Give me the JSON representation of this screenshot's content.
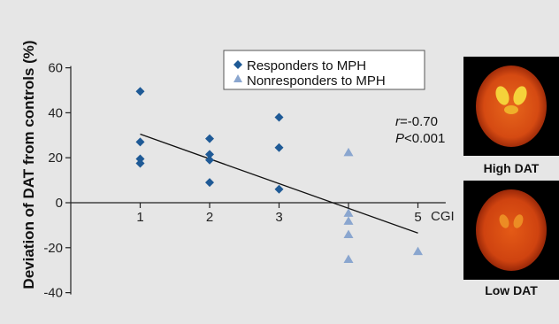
{
  "chart_data": {
    "type": "scatter",
    "ylabel": "Deviation of DAT from controls (%)",
    "xlabel": "CGI",
    "xlim": [
      0,
      5.4
    ],
    "ylim": [
      -40,
      60
    ],
    "x_ticks": [
      1,
      2,
      3,
      4,
      5
    ],
    "y_ticks": [
      60,
      40,
      20,
      0,
      -20,
      -40
    ],
    "x_tick_labels": [
      "1",
      "2",
      "3",
      "",
      "5"
    ],
    "y_tick_labels": [
      "60",
      "40",
      "20",
      "0",
      "-20",
      "-40"
    ],
    "legend_position": "top-center",
    "series": [
      {
        "name": "Responders to MPH",
        "marker": "diamond",
        "color": "#1f5a96",
        "points": [
          {
            "x": 1,
            "y": 49.5
          },
          {
            "x": 1,
            "y": 27
          },
          {
            "x": 1,
            "y": 19.5
          },
          {
            "x": 1,
            "y": 17.5
          },
          {
            "x": 2,
            "y": 28.5
          },
          {
            "x": 2,
            "y": 21.5
          },
          {
            "x": 2,
            "y": 19
          },
          {
            "x": 2,
            "y": 9
          },
          {
            "x": 3,
            "y": 38
          },
          {
            "x": 3,
            "y": 24.5
          },
          {
            "x": 3,
            "y": 6
          }
        ]
      },
      {
        "name": "Nonresponders to MPH",
        "marker": "triangle",
        "color": "#8aa6cf",
        "points": [
          {
            "x": 4,
            "y": 22.5
          },
          {
            "x": 4,
            "y": -4.5
          },
          {
            "x": 4,
            "y": -8
          },
          {
            "x": 4,
            "y": -14
          },
          {
            "x": 4,
            "y": -25
          },
          {
            "x": 5,
            "y": -21.5
          }
        ]
      }
    ],
    "trendline": {
      "from": {
        "x": 1,
        "y": 30.5
      },
      "to": {
        "x": 5,
        "y": -13.5
      },
      "color": "#111111"
    },
    "annotation": {
      "r_label": "r",
      "r_value": "=-0.70",
      "p_label": "P",
      "p_value": "<0.001"
    }
  },
  "images": [
    {
      "icon": "brain-scan-high-icon",
      "label": "High DAT"
    },
    {
      "icon": "brain-scan-low-icon",
      "label": "Low DAT"
    }
  ]
}
